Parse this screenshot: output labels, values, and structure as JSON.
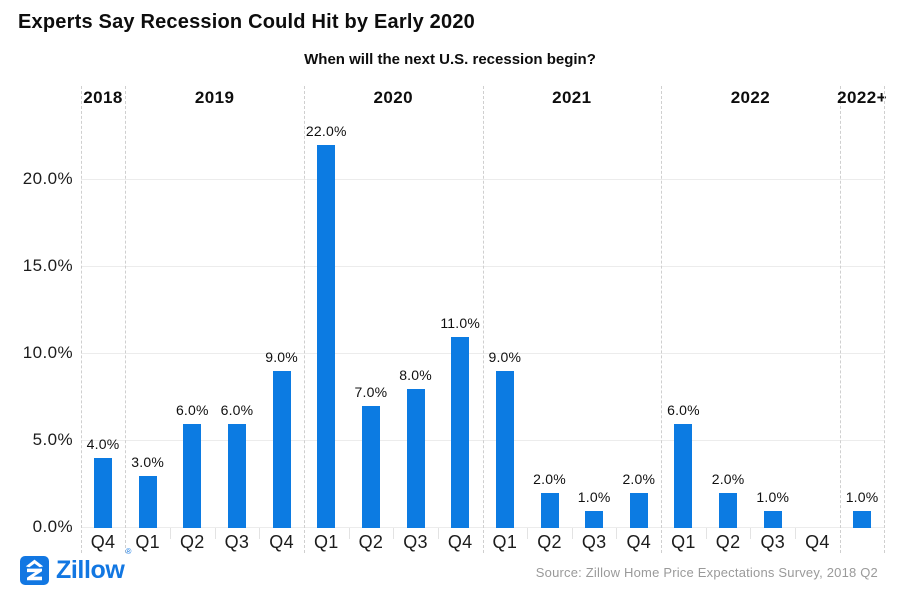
{
  "chart_data": {
    "type": "bar",
    "title": "Experts Say Recession Could Hit by Early 2020",
    "subtitle": "When will the next U.S. recession begin?",
    "xlabel": "",
    "ylabel": "",
    "ylim": [
      0,
      23
    ],
    "grid": "horizontal solid gridlines; dashed vertical separators between year groups",
    "legend": "none",
    "bar_color": "#0c7be2",
    "yticks": [
      0,
      5,
      10,
      15,
      20
    ],
    "ytick_labels": [
      "0.0%",
      "5.0%",
      "10.0%",
      "15.0%",
      "20.0%"
    ],
    "quarters": [
      "2018 Q4",
      "2019 Q1",
      "2019 Q2",
      "2019 Q3",
      "2019 Q4",
      "2020 Q1",
      "2020 Q2",
      "2020 Q3",
      "2020 Q4",
      "2021 Q1",
      "2021 Q2",
      "2021 Q3",
      "2021 Q4",
      "2022 Q1",
      "2022 Q2",
      "2022 Q3",
      "2022 Q4",
      "2022+"
    ],
    "values": [
      4.0,
      3.0,
      6.0,
      6.0,
      9.0,
      22.0,
      7.0,
      8.0,
      11.0,
      9.0,
      2.0,
      1.0,
      2.0,
      6.0,
      2.0,
      1.0,
      0.0,
      1.0
    ],
    "groups": [
      {
        "year": "2018",
        "bars": [
          {
            "quarter": "Q4",
            "value": 4.0,
            "label": "4.0%"
          }
        ]
      },
      {
        "year": "2019",
        "bars": [
          {
            "quarter": "Q1",
            "value": 3.0,
            "label": "3.0%"
          },
          {
            "quarter": "Q2",
            "value": 6.0,
            "label": "6.0%"
          },
          {
            "quarter": "Q3",
            "value": 6.0,
            "label": "6.0%"
          },
          {
            "quarter": "Q4",
            "value": 9.0,
            "label": "9.0%"
          }
        ]
      },
      {
        "year": "2020",
        "bars": [
          {
            "quarter": "Q1",
            "value": 22.0,
            "label": "22.0%"
          },
          {
            "quarter": "Q2",
            "value": 7.0,
            "label": "7.0%"
          },
          {
            "quarter": "Q3",
            "value": 8.0,
            "label": "8.0%"
          },
          {
            "quarter": "Q4",
            "value": 11.0,
            "label": "11.0%"
          }
        ]
      },
      {
        "year": "2021",
        "bars": [
          {
            "quarter": "Q1",
            "value": 9.0,
            "label": "9.0%"
          },
          {
            "quarter": "Q2",
            "value": 2.0,
            "label": "2.0%"
          },
          {
            "quarter": "Q3",
            "value": 1.0,
            "label": "1.0%"
          },
          {
            "quarter": "Q4",
            "value": 2.0,
            "label": "2.0%"
          }
        ]
      },
      {
        "year": "2022",
        "bars": [
          {
            "quarter": "Q1",
            "value": 6.0,
            "label": "6.0%"
          },
          {
            "quarter": "Q2",
            "value": 2.0,
            "label": "2.0%"
          },
          {
            "quarter": "Q3",
            "value": 1.0,
            "label": "1.0%"
          },
          {
            "quarter": "Q4",
            "value": 0.0,
            "label": ""
          }
        ]
      },
      {
        "year": "2022+",
        "bars": [
          {
            "quarter": "",
            "value": 1.0,
            "label": "1.0%"
          }
        ]
      }
    ]
  },
  "footer": {
    "logo": "Zillow",
    "trademark": "®",
    "source": "Source: Zillow Home Price Expectations Survey, 2018 Q2"
  },
  "colors": {
    "bar_blue": "#0c7be2",
    "logo_blue": "#1277e2",
    "gridline": "#ececec",
    "separator": "#cfcfcf",
    "source_gray": "#9a9a9a"
  }
}
